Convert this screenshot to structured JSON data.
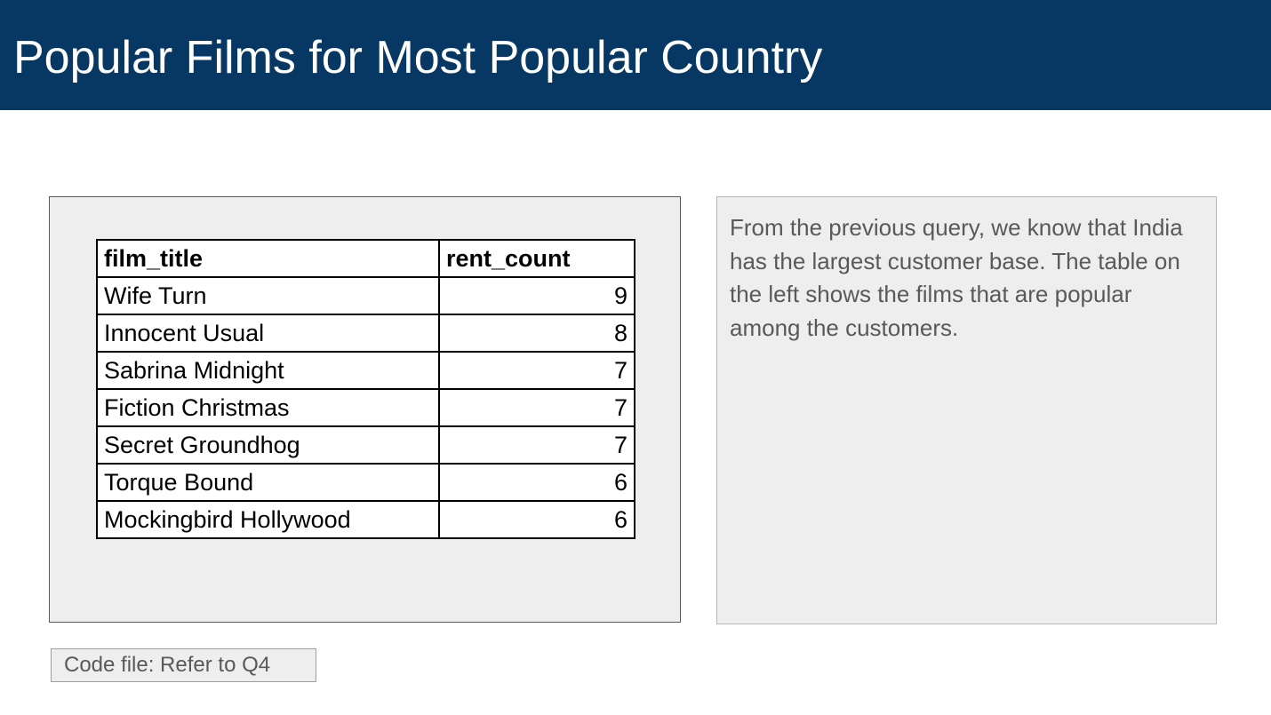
{
  "header": {
    "title": "Popular Films for Most Popular Country"
  },
  "table": {
    "columns": [
      "film_title",
      "rent_count"
    ],
    "rows": [
      {
        "film_title": "Wife Turn",
        "rent_count": "9"
      },
      {
        "film_title": "Innocent Usual",
        "rent_count": "8"
      },
      {
        "film_title": "Sabrina Midnight",
        "rent_count": "7"
      },
      {
        "film_title": "Fiction Christmas",
        "rent_count": "7"
      },
      {
        "film_title": "Secret Groundhog",
        "rent_count": "7"
      },
      {
        "film_title": "Torque Bound",
        "rent_count": "6"
      },
      {
        "film_title": "Mockingbird Hollywood",
        "rent_count": "6"
      }
    ]
  },
  "description": {
    "text": "From the previous query, we know that India has the largest customer base. The table on the left shows the films that are popular among the customers."
  },
  "footer": {
    "code_note": "Code file: Refer to Q4"
  },
  "colors": {
    "title_bar": "#073763",
    "panel_background": "#eeeeee",
    "body_text": "#595959"
  }
}
